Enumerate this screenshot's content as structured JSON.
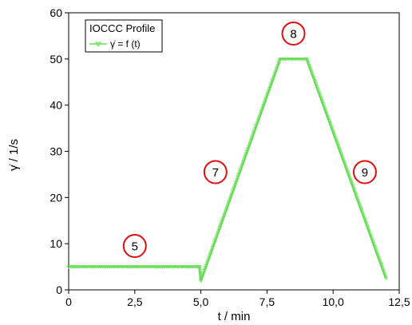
{
  "chart_data": {
    "type": "line",
    "legend": {
      "title": "IOCCC Profile",
      "entries": [
        "γ̇ = f (t)"
      ],
      "placement": "top-left"
    },
    "xlabel": "t / min",
    "ylabel": "γ̇ / 1/s",
    "xlim": [
      0,
      12.5
    ],
    "ylim": [
      0,
      60
    ],
    "x_ticks": [
      "0",
      "2,5",
      "5,0",
      "7,5",
      "10,0",
      "12,5"
    ],
    "y_ticks": [
      "0",
      "10",
      "20",
      "30",
      "40",
      "50",
      "60"
    ],
    "grid": false,
    "series_color": "#66dd55",
    "series": [
      {
        "name": "γ̇ = f (t)",
        "x": [
          0,
          4.95,
          5.0,
          8.0,
          9.0,
          12.0
        ],
        "y": [
          5,
          5,
          2,
          50,
          50,
          2.5
        ]
      }
    ],
    "annotations": [
      {
        "label": "5",
        "x": 2.5,
        "y": 9.5
      },
      {
        "label": "7",
        "x": 5.55,
        "y": 25.5
      },
      {
        "label": "8",
        "x": 8.5,
        "y": 55.5
      },
      {
        "label": "9",
        "x": 11.2,
        "y": 25.5
      }
    ],
    "annotation_color": "#e01010"
  }
}
